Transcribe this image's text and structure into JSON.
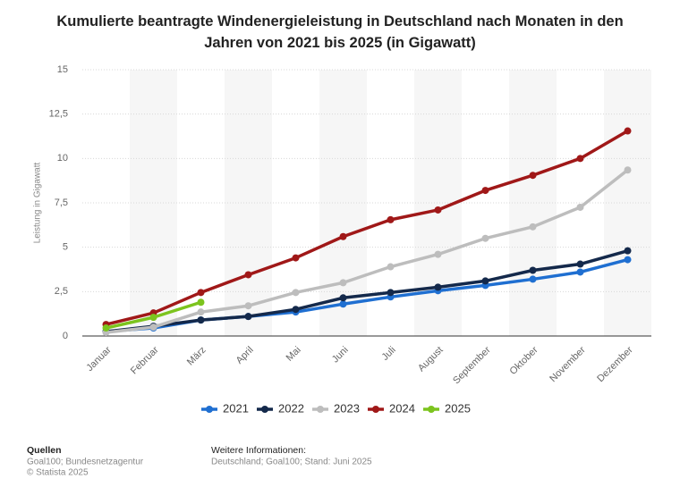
{
  "chart_data": {
    "type": "line",
    "title": "Kumulierte beantragte Windenergieleistung in Deutschland nach Monaten in den Jahren von 2021 bis 2025 (in Gigawatt)",
    "y_label": "Leistung in Gigawatt",
    "categories": [
      "Januar",
      "Februar",
      "März",
      "April",
      "Mai",
      "Juni",
      "Juli",
      "August",
      "September",
      "Oktober",
      "November",
      "Dezember"
    ],
    "series": [
      {
        "name": "2021",
        "color": "#1f6fd1",
        "values": [
          0.25,
          0.45,
          0.9,
          1.1,
          1.35,
          1.8,
          2.2,
          2.55,
          2.85,
          3.2,
          3.6,
          4.3
        ]
      },
      {
        "name": "2022",
        "color": "#14294b",
        "values": [
          0.25,
          0.55,
          0.9,
          1.1,
          1.5,
          2.15,
          2.45,
          2.75,
          3.1,
          3.7,
          4.05,
          4.8
        ]
      },
      {
        "name": "2023",
        "color": "#bdbdbd",
        "values": [
          0.2,
          0.5,
          1.35,
          1.7,
          2.45,
          3.0,
          3.9,
          4.6,
          5.5,
          6.15,
          7.25,
          9.35
        ]
      },
      {
        "name": "2024",
        "color": "#a01818",
        "values": [
          0.65,
          1.3,
          2.45,
          3.45,
          4.4,
          5.6,
          6.55,
          7.1,
          8.2,
          9.05,
          10.0,
          11.55
        ]
      },
      {
        "name": "2025",
        "color": "#7cc41e",
        "values": [
          0.45,
          1.05,
          1.9,
          null,
          null,
          null,
          null,
          null,
          null,
          null,
          null,
          null
        ]
      }
    ],
    "ylim": [
      0,
      15
    ],
    "yticks": [
      0,
      {
        "value": 2.5,
        "label": "2,5"
      },
      5,
      {
        "value": 7.5,
        "label": "7,5"
      },
      10,
      {
        "value": 12.5,
        "label": "12,5"
      },
      15
    ],
    "grid": true,
    "legend": "bottom",
    "sources_title": "Quellen",
    "sources": [
      "Goal100; Bundesnetzagentur",
      "© Statista 2025"
    ],
    "info_title": "Weitere Informationen:",
    "info": "Deutschland; Goal100; Stand: Juni 2025"
  }
}
